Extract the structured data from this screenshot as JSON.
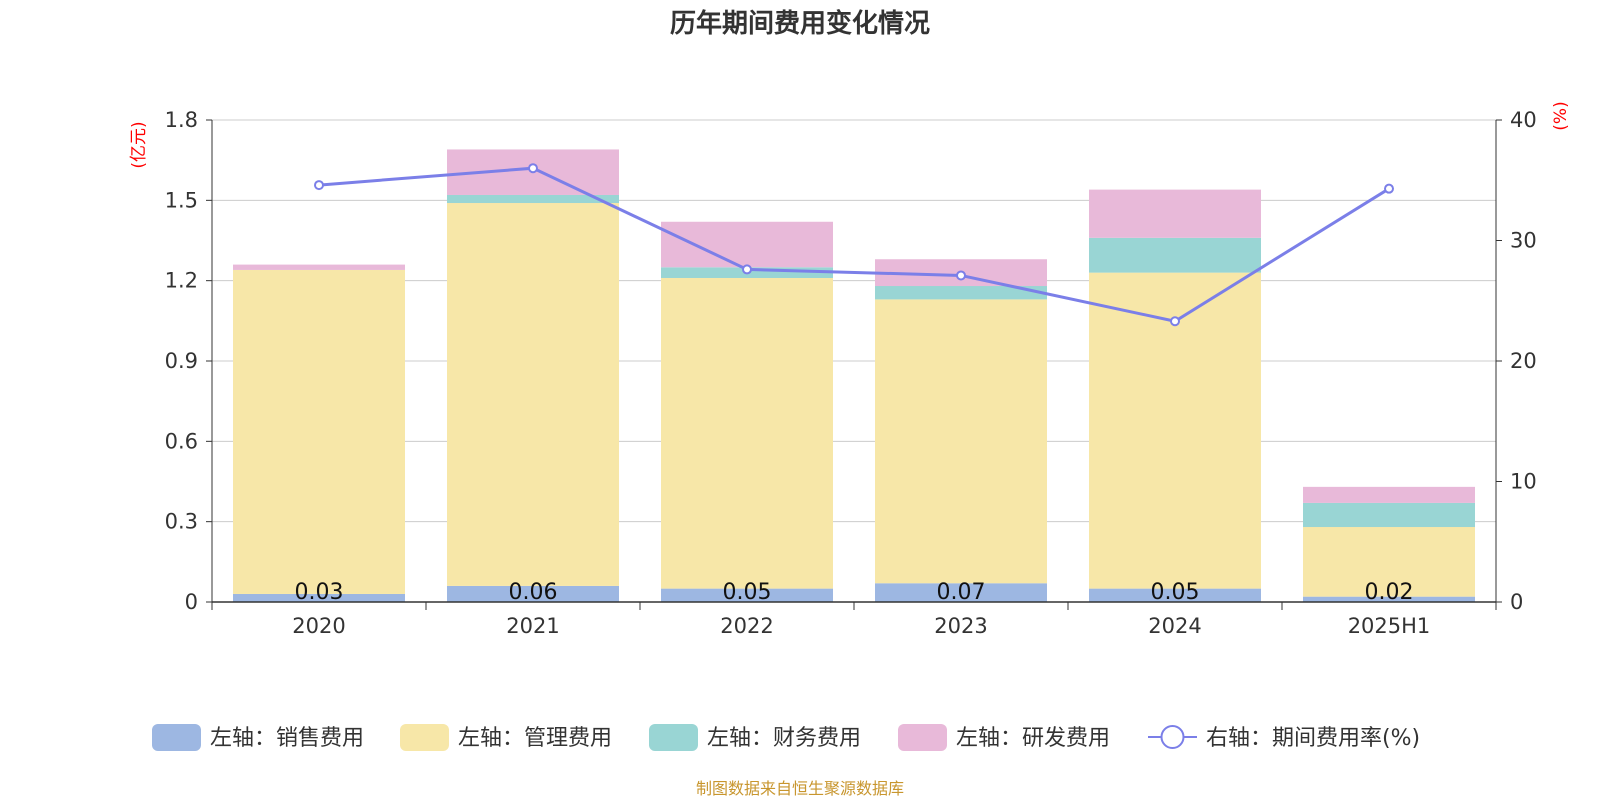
{
  "chart_data": {
    "type": "bar",
    "title": "历年期间费用变化情况",
    "categories": [
      "2020",
      "2021",
      "2022",
      "2023",
      "2024",
      "2025H1"
    ],
    "left_axis": {
      "unit": "(亿元)",
      "ylim": [
        0,
        1.8
      ],
      "ticks": [
        "0",
        "0.3",
        "0.6",
        "0.9",
        "1.2",
        "1.5",
        "1.8"
      ]
    },
    "right_axis": {
      "unit": "(%)",
      "ylim": [
        0,
        40
      ],
      "ticks": [
        "0",
        "10",
        "20",
        "30",
        "40"
      ]
    },
    "series": [
      {
        "name": "左轴：销售费用",
        "type": "bar",
        "axis": "left",
        "color": "#9db7e2",
        "values": [
          0.03,
          0.06,
          0.05,
          0.07,
          0.05,
          0.02
        ],
        "labels": [
          "0.03",
          "0.06",
          "0.05",
          "0.07",
          "0.05",
          "0.02"
        ]
      },
      {
        "name": "左轴：管理费用",
        "type": "bar",
        "axis": "left",
        "color": "#f7e7a8",
        "values": [
          1.21,
          1.43,
          1.16,
          1.06,
          1.18,
          0.26
        ]
      },
      {
        "name": "左轴：财务费用",
        "type": "bar",
        "axis": "left",
        "color": "#99d5d4",
        "values": [
          0.0,
          0.03,
          0.04,
          0.05,
          0.13,
          0.09
        ]
      },
      {
        "name": "左轴：研发费用",
        "type": "bar",
        "axis": "left",
        "color": "#e8b9d9",
        "values": [
          0.02,
          0.17,
          0.17,
          0.1,
          0.18,
          0.06
        ]
      },
      {
        "name": "右轴：期间费用率(%)",
        "type": "line",
        "axis": "right",
        "color": "#7b7fe8",
        "values": [
          34.6,
          36.0,
          27.6,
          27.1,
          23.3,
          34.3
        ]
      }
    ],
    "grid": true,
    "legend": "bottom",
    "stacked": true
  },
  "source_note": "制图数据来自恒生聚源数据库"
}
